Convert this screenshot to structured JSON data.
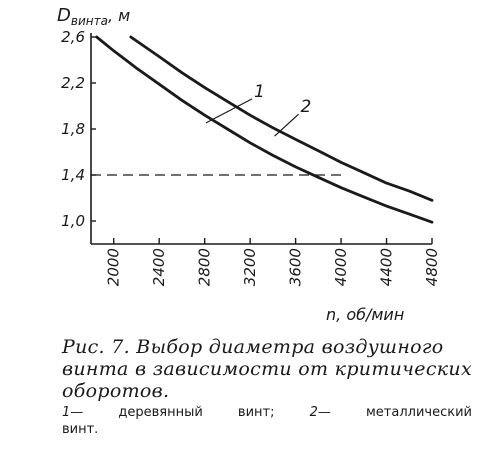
{
  "chart_data": {
    "type": "line",
    "title": "",
    "ylabel": "Dвинта, м",
    "ylabel_main": "D",
    "ylabel_sub": "винта",
    "ylabel_unit": ", м",
    "xlabel": "n, об/мин",
    "xlim": [
      1800,
      4800
    ],
    "ylim": [
      0.8,
      2.6
    ],
    "x_ticks": [
      2000,
      2400,
      2800,
      3200,
      3600,
      4000,
      4400,
      4800
    ],
    "x_tick_labels": [
      "2000",
      "2400",
      "2800",
      "3200",
      "3600",
      "4000",
      "4400",
      "4800"
    ],
    "y_ticks": [
      1.0,
      1.4,
      1.8,
      2.2,
      2.6
    ],
    "y_tick_labels": [
      "1,0",
      "1,4",
      "1,8",
      "2,2",
      "2,6"
    ],
    "grid": false,
    "reference_line": {
      "y": 1.4,
      "style": "dashed"
    },
    "series": [
      {
        "name": "1",
        "x": [
          1850,
          2000,
          2200,
          2400,
          2600,
          2800,
          3000,
          3200,
          3400,
          3600,
          3800,
          4000,
          4200,
          4400,
          4600,
          4800
        ],
        "y": [
          2.6,
          2.48,
          2.33,
          2.19,
          2.05,
          1.92,
          1.8,
          1.68,
          1.57,
          1.47,
          1.38,
          1.29,
          1.21,
          1.13,
          1.06,
          0.99
        ]
      },
      {
        "name": "2",
        "x": [
          2150,
          2400,
          2600,
          2800,
          3000,
          3200,
          3400,
          3600,
          3800,
          4000,
          4200,
          4400,
          4600,
          4800
        ],
        "y": [
          2.6,
          2.43,
          2.29,
          2.16,
          2.04,
          1.92,
          1.81,
          1.71,
          1.61,
          1.51,
          1.42,
          1.33,
          1.26,
          1.18
        ]
      }
    ]
  },
  "caption": {
    "text": "Рис. 7. Выбор диаметра воздушного винта в зависимости от критических оборотов."
  },
  "legend_note": {
    "num1": "1",
    "item1": "— деревянный винт;",
    "num2": "2",
    "item2": "— металлический",
    "cont": "винт."
  }
}
